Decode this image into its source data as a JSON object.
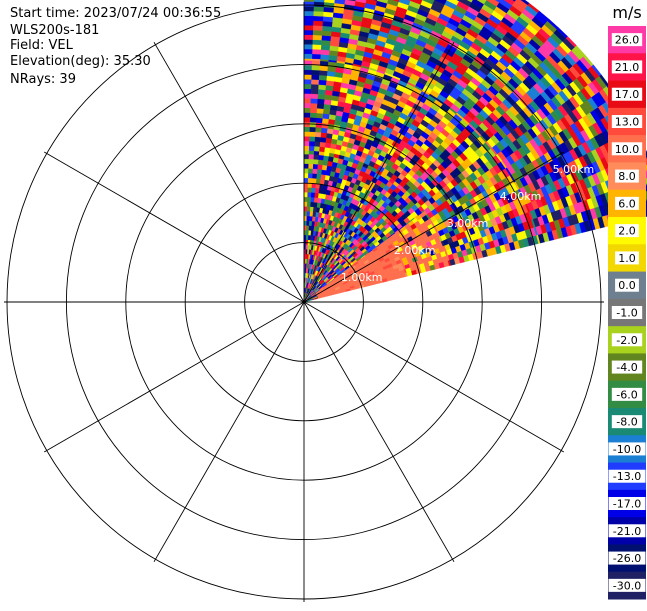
{
  "info": [
    "Start time: 2023/07/24 00:36:55",
    "WLS200s-181",
    "Field: VEL",
    "Elevation(deg): 35.30",
    "NRays: 39"
  ],
  "chart_data": {
    "type": "ppi-sector",
    "field": "VEL",
    "unit": "m/s",
    "elevation_deg": 35.3,
    "nrays": 39,
    "azimuth_range_deg": [
      0,
      76
    ],
    "range_rings_km": [
      1,
      2,
      3,
      4,
      5
    ],
    "range_labels": [
      "1.00km",
      "2.00km",
      "3.00km",
      "4.00km",
      "5.00km"
    ],
    "max_range_km": 6.3,
    "bands": [
      {
        "r_min": 0.0,
        "r_max": 0.25,
        "az_min": 0,
        "az_max": 76,
        "mode": "noise"
      },
      {
        "r_min": 0.25,
        "r_max": 2.55,
        "az_min": 0,
        "az_max": 53,
        "mode": "noise"
      },
      {
        "r_min": 0.25,
        "r_max": 1.8,
        "az_min": 53,
        "az_max": 76,
        "mode": "mean",
        "mean_ms": 7
      },
      {
        "r_min": 1.8,
        "r_max": 2.55,
        "az_min": 53,
        "az_max": 76,
        "mode": "warm",
        "mean_ms": 5
      },
      {
        "r_min": 2.55,
        "r_max": 4.1,
        "az_min": 0,
        "az_max": 76,
        "mode": "noise-warm"
      },
      {
        "r_min": 4.1,
        "r_max": 6.3,
        "az_min": 0,
        "az_max": 76,
        "mode": "noise"
      }
    ],
    "colorbar": {
      "title": "m/s",
      "ticks": [
        "26.0",
        "21.0",
        "17.0",
        "13.0",
        "10.0",
        "8.0",
        "6.0",
        "2.0",
        "1.0",
        "0.0",
        "-1.0",
        "-2.0",
        "-4.0",
        "-6.0",
        "-8.0",
        "-10.0",
        "-13.0",
        "-17.0",
        "-21.0",
        "-26.0",
        "-30.0"
      ],
      "colors": [
        "#ff3aa6",
        "#ff1449",
        "#e80a14",
        "#ff4a3c",
        "#ff6f4e",
        "#ff8c5a",
        "#ffb400",
        "#fffa00",
        "#f2d700",
        "#6e7f8f",
        "#777777",
        "#a8d21e",
        "#62861f",
        "#328c44",
        "#1b8a74",
        "#1b7fd4",
        "#1f3cff",
        "#0000e8",
        "#0000a8",
        "#001070",
        "#202064"
      ]
    }
  }
}
